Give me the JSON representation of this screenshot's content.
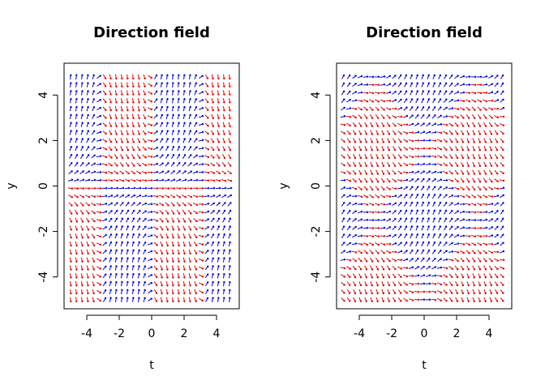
{
  "chart_data": [
    {
      "type": "direction-field",
      "title": "Direction field",
      "xlabel": "t",
      "ylabel": "y",
      "xlim": [
        -5.4,
        5.4
      ],
      "ylim": [
        -5.4,
        5.4
      ],
      "xticks": [
        -4,
        -2,
        0,
        2,
        4
      ],
      "xtick_labels": [
        "-4",
        "-2",
        "0",
        "2",
        "4"
      ],
      "yticks": [
        -4,
        -2,
        0,
        2,
        4
      ],
      "ytick_labels": [
        "-4",
        "-2",
        "0",
        "2",
        "4"
      ],
      "grid": {
        "t_from": -5,
        "t_to": 5,
        "y_from": -5,
        "y_to": 5,
        "step": 0.35
      },
      "slope_function": "sin(t)*y",
      "colors": {
        "positive": "#0000cc",
        "negative": "#e00000",
        "zero": "#00ee00"
      }
    },
    {
      "type": "direction-field",
      "title": "Direction field",
      "xlabel": "t",
      "ylabel": "y",
      "xlim": [
        -5.4,
        5.4
      ],
      "ylim": [
        -5.4,
        5.4
      ],
      "xticks": [
        -4,
        -2,
        0,
        2,
        4
      ],
      "xtick_labels": [
        "-4",
        "-2",
        "0",
        "2",
        "4"
      ],
      "yticks": [
        -4,
        -2,
        0,
        2,
        4
      ],
      "ytick_labels": [
        "-4",
        "-2",
        "0",
        "2",
        "4"
      ],
      "grid": {
        "t_from": -5,
        "t_to": 5,
        "y_from": -5,
        "y_to": 5,
        "step": 0.35
      },
      "slope_function": "cos(t) - sin(y)",
      "colors": {
        "positive": "#0000cc",
        "negative": "#e00000",
        "zero": "#00ee00"
      }
    }
  ]
}
